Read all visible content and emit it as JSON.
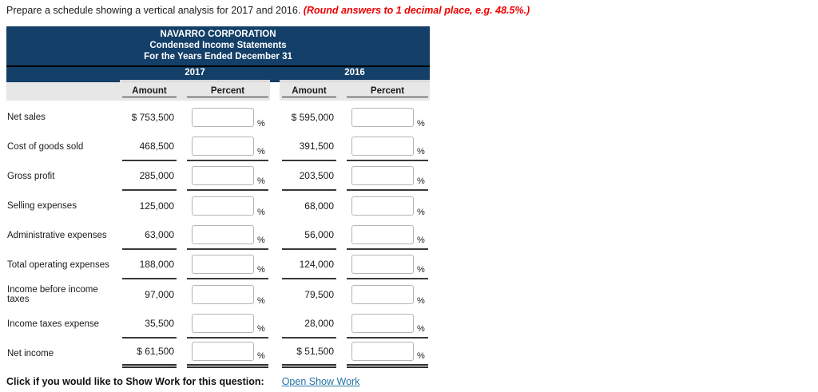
{
  "instruction": {
    "text": "Prepare a schedule showing a vertical analysis for 2017 and 2016.",
    "note": "(Round answers to 1 decimal place, e.g. 48.5%.)"
  },
  "statement": {
    "title_lines": [
      "NAVARRO CORPORATION",
      "Condensed Income Statements",
      "For the Years Ended December 31"
    ],
    "years": [
      "2017",
      "2016"
    ],
    "column_headers": [
      "Amount",
      "Percent",
      "Amount",
      "Percent"
    ],
    "percent_suffix": "%",
    "input_placeholder": "",
    "rows": [
      {
        "label": "Net sales",
        "amount_2017": "$ 753,500",
        "amount_2016": "$ 595,000",
        "rule": "none"
      },
      {
        "label": "Cost of goods sold",
        "amount_2017": "468,500",
        "amount_2016": "391,500",
        "rule": "single"
      },
      {
        "label": "Gross profit",
        "amount_2017": "285,000",
        "amount_2016": "203,500",
        "rule": "single"
      },
      {
        "label": "Selling expenses",
        "amount_2017": "125,000",
        "amount_2016": "68,000",
        "rule": "none"
      },
      {
        "label": "Administrative expenses",
        "amount_2017": "63,000",
        "amount_2016": "56,000",
        "rule": "single"
      },
      {
        "label": "Total operating expenses",
        "amount_2017": "188,000",
        "amount_2016": "124,000",
        "rule": "single"
      },
      {
        "label": "Income before income taxes",
        "amount_2017": "97,000",
        "amount_2016": "79,500",
        "rule": "none"
      },
      {
        "label": "Income taxes expense",
        "amount_2017": "35,500",
        "amount_2016": "28,000",
        "rule": "single"
      },
      {
        "label": "Net income",
        "amount_2017": "$ 61,500",
        "amount_2016": "$ 51,500",
        "rule": "double"
      }
    ]
  },
  "footer": {
    "prompt": "Click if you would like to Show Work for this question:",
    "link": "Open Show Work"
  },
  "colors": {
    "header_bg": "#133f68",
    "subheader_bg": "#e7e7e7",
    "note_red": "#ee0000",
    "link_blue": "#2673a6",
    "rule_color": "#333333"
  }
}
